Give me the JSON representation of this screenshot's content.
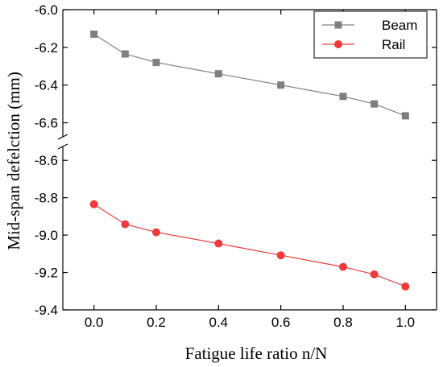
{
  "chart_data": {
    "type": "line",
    "title": "",
    "xlabel": "Fatigue life ratio n/N",
    "ylabel": "Mid-span defelction (mm)",
    "x": [
      0.0,
      0.1,
      0.2,
      0.4,
      0.6,
      0.8,
      0.9,
      1.0
    ],
    "xlim": [
      -0.1,
      1.1
    ],
    "x_ticks": [
      "0.0",
      "0.2",
      "0.4",
      "0.6",
      "0.8",
      "1.0"
    ],
    "y_axis_break": true,
    "y_upper_segment": {
      "ylim": [
        -6.7,
        -6.0
      ],
      "ticks": [
        "-6.0",
        "-6.2",
        "-6.4",
        "-6.6"
      ]
    },
    "y_lower_segment": {
      "ylim": [
        -9.4,
        -8.5
      ],
      "ticks": [
        "-8.6",
        "-8.8",
        "-9.0",
        "-9.2",
        "-9.4"
      ]
    },
    "series": [
      {
        "name": "Beam",
        "marker": "square",
        "color": "#7f7f7f",
        "segment": "upper",
        "values": [
          -6.13,
          -6.235,
          -6.28,
          -6.34,
          -6.4,
          -6.46,
          -6.5,
          -6.563
        ]
      },
      {
        "name": "Rail",
        "marker": "circle",
        "color": "#ee3a3a",
        "segment": "lower",
        "values": [
          -8.835,
          -8.942,
          -8.985,
          -9.045,
          -9.108,
          -9.17,
          -9.21,
          -9.275
        ]
      }
    ],
    "legend_position": "top-right",
    "grid": false
  }
}
